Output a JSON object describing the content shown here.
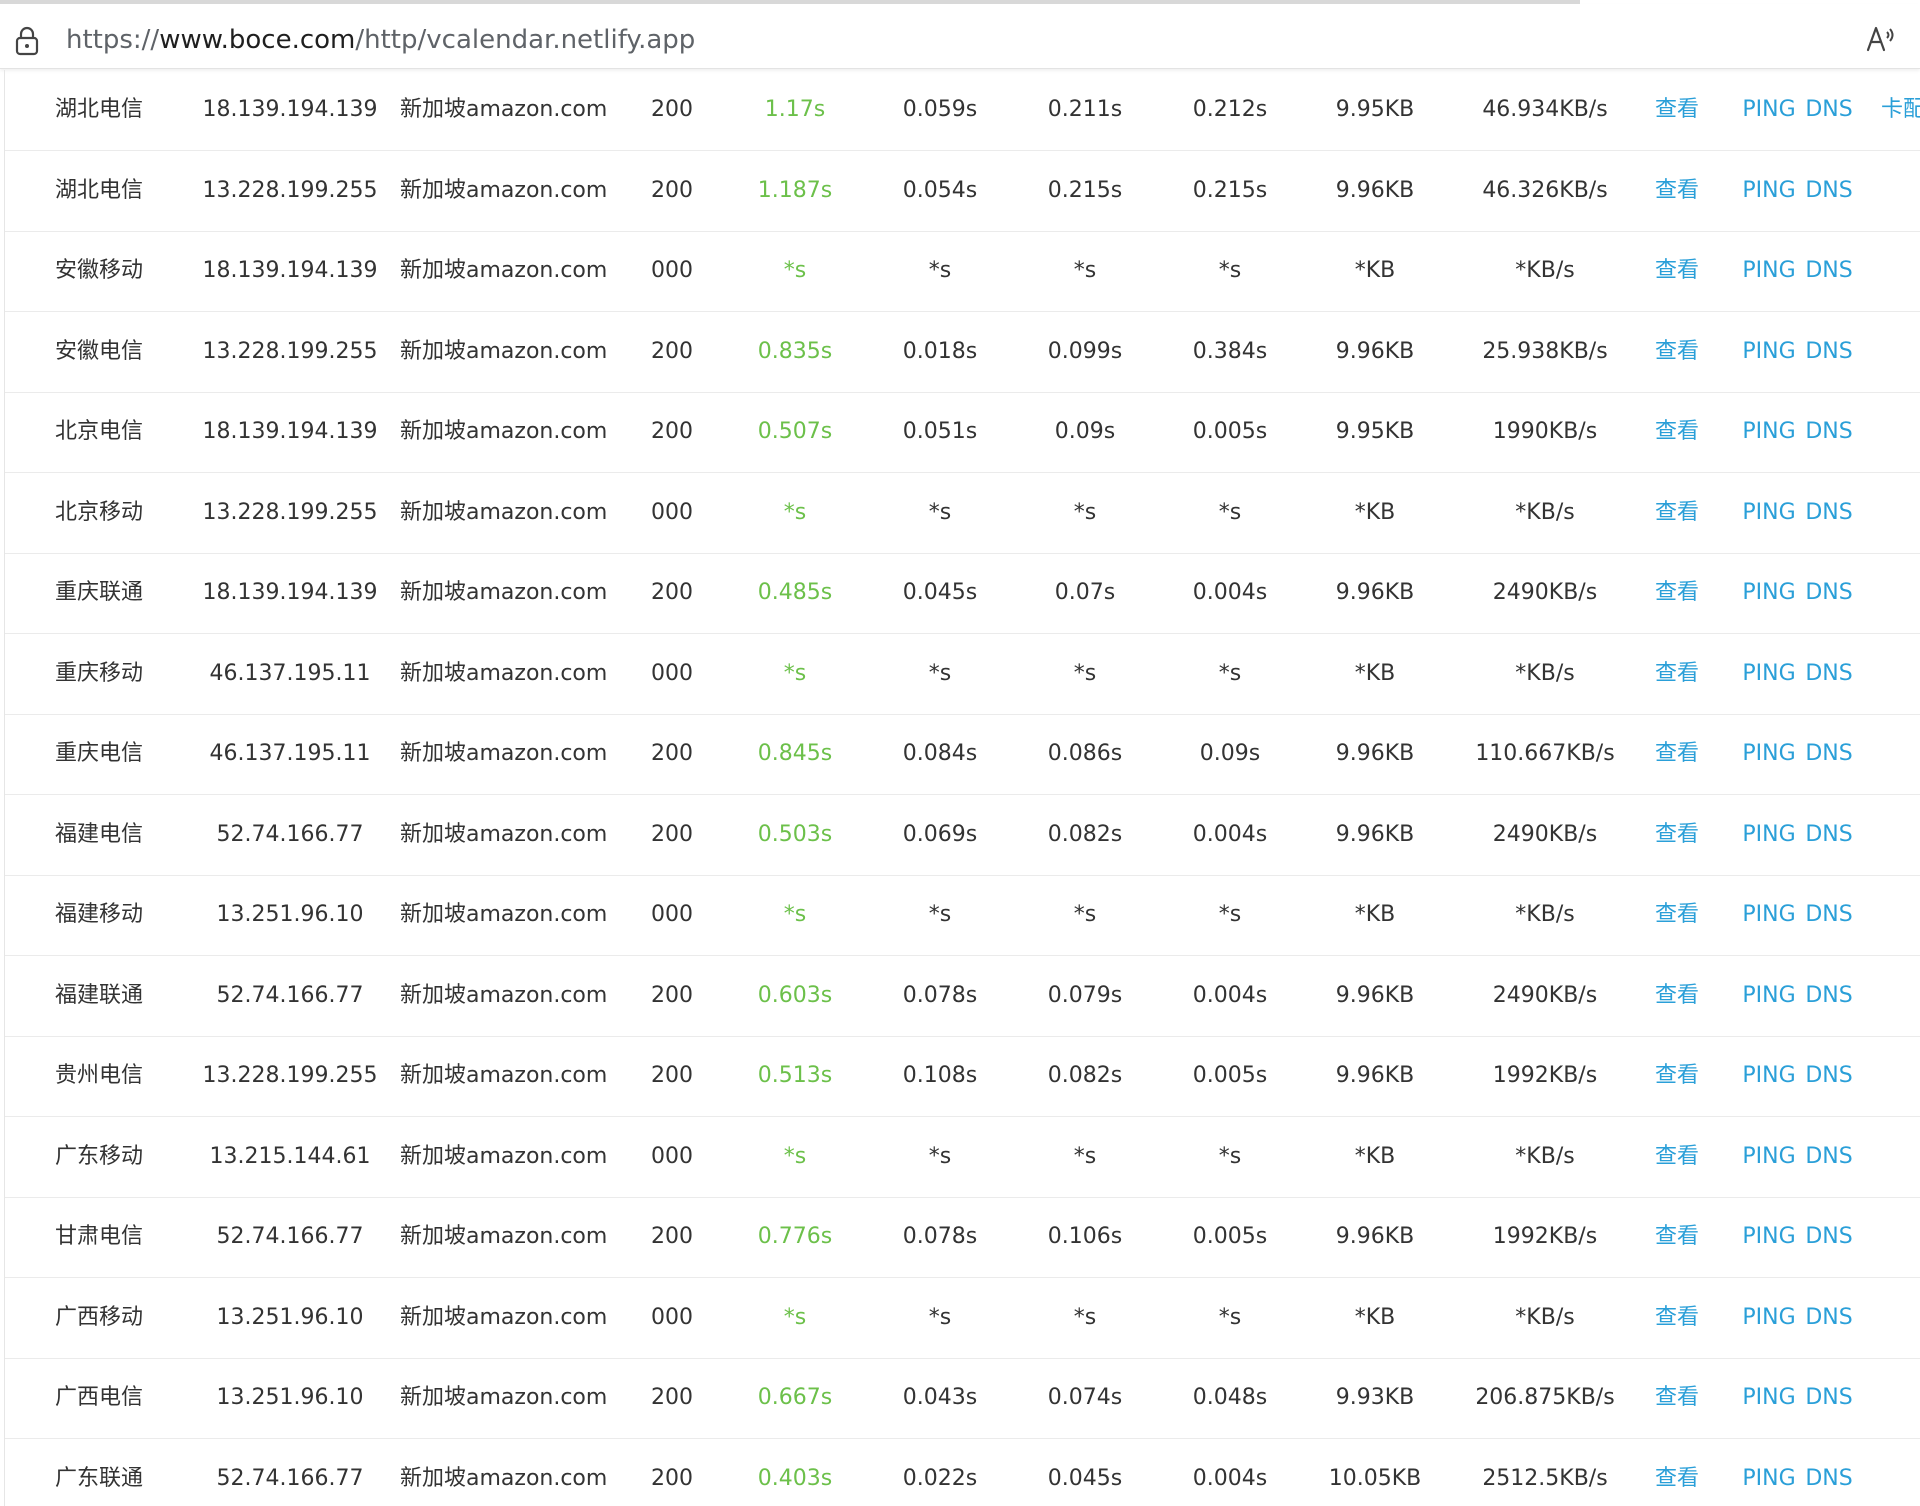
{
  "address_bar": {
    "url_prefix": "https://",
    "url_domain": "www.boce.com",
    "url_path": "/http/vcalendar.netlify.app",
    "lock_icon": "lock-icon",
    "read_aloud_icon": "read-aloud-icon"
  },
  "colors": {
    "link": "#2a9fd8",
    "total_time": "#6cc04a",
    "text": "#333333"
  },
  "row_extra_text": "卡配",
  "rows": [
    {
      "region": "湖北电信",
      "ip": "18.139.194.139",
      "location": "新加坡amazon.com",
      "code": "200",
      "total": "1.17s",
      "dns": "0.059s",
      "connect": "0.211s",
      "download": "0.212s",
      "size": "9.95KB",
      "speed": "46.934KB/s",
      "view": "查看",
      "ping": "PING",
      "dns_link": "DNS"
    },
    {
      "region": "湖北电信",
      "ip": "13.228.199.255",
      "location": "新加坡amazon.com",
      "code": "200",
      "total": "1.187s",
      "dns": "0.054s",
      "connect": "0.215s",
      "download": "0.215s",
      "size": "9.96KB",
      "speed": "46.326KB/s",
      "view": "查看",
      "ping": "PING",
      "dns_link": "DNS"
    },
    {
      "region": "安徽移动",
      "ip": "18.139.194.139",
      "location": "新加坡amazon.com",
      "code": "000",
      "total": "*s",
      "dns": "*s",
      "connect": "*s",
      "download": "*s",
      "size": "*KB",
      "speed": "*KB/s",
      "view": "查看",
      "ping": "PING",
      "dns_link": "DNS"
    },
    {
      "region": "安徽电信",
      "ip": "13.228.199.255",
      "location": "新加坡amazon.com",
      "code": "200",
      "total": "0.835s",
      "dns": "0.018s",
      "connect": "0.099s",
      "download": "0.384s",
      "size": "9.96KB",
      "speed": "25.938KB/s",
      "view": "查看",
      "ping": "PING",
      "dns_link": "DNS"
    },
    {
      "region": "北京电信",
      "ip": "18.139.194.139",
      "location": "新加坡amazon.com",
      "code": "200",
      "total": "0.507s",
      "dns": "0.051s",
      "connect": "0.09s",
      "download": "0.005s",
      "size": "9.95KB",
      "speed": "1990KB/s",
      "view": "查看",
      "ping": "PING",
      "dns_link": "DNS"
    },
    {
      "region": "北京移动",
      "ip": "13.228.199.255",
      "location": "新加坡amazon.com",
      "code": "000",
      "total": "*s",
      "dns": "*s",
      "connect": "*s",
      "download": "*s",
      "size": "*KB",
      "speed": "*KB/s",
      "view": "查看",
      "ping": "PING",
      "dns_link": "DNS"
    },
    {
      "region": "重庆联通",
      "ip": "18.139.194.139",
      "location": "新加坡amazon.com",
      "code": "200",
      "total": "0.485s",
      "dns": "0.045s",
      "connect": "0.07s",
      "download": "0.004s",
      "size": "9.96KB",
      "speed": "2490KB/s",
      "view": "查看",
      "ping": "PING",
      "dns_link": "DNS"
    },
    {
      "region": "重庆移动",
      "ip": "46.137.195.11",
      "location": "新加坡amazon.com",
      "code": "000",
      "total": "*s",
      "dns": "*s",
      "connect": "*s",
      "download": "*s",
      "size": "*KB",
      "speed": "*KB/s",
      "view": "查看",
      "ping": "PING",
      "dns_link": "DNS"
    },
    {
      "region": "重庆电信",
      "ip": "46.137.195.11",
      "location": "新加坡amazon.com",
      "code": "200",
      "total": "0.845s",
      "dns": "0.084s",
      "connect": "0.086s",
      "download": "0.09s",
      "size": "9.96KB",
      "speed": "110.667KB/s",
      "view": "查看",
      "ping": "PING",
      "dns_link": "DNS"
    },
    {
      "region": "福建电信",
      "ip": "52.74.166.77",
      "location": "新加坡amazon.com",
      "code": "200",
      "total": "0.503s",
      "dns": "0.069s",
      "connect": "0.082s",
      "download": "0.004s",
      "size": "9.96KB",
      "speed": "2490KB/s",
      "view": "查看",
      "ping": "PING",
      "dns_link": "DNS"
    },
    {
      "region": "福建移动",
      "ip": "13.251.96.10",
      "location": "新加坡amazon.com",
      "code": "000",
      "total": "*s",
      "dns": "*s",
      "connect": "*s",
      "download": "*s",
      "size": "*KB",
      "speed": "*KB/s",
      "view": "查看",
      "ping": "PING",
      "dns_link": "DNS"
    },
    {
      "region": "福建联通",
      "ip": "52.74.166.77",
      "location": "新加坡amazon.com",
      "code": "200",
      "total": "0.603s",
      "dns": "0.078s",
      "connect": "0.079s",
      "download": "0.004s",
      "size": "9.96KB",
      "speed": "2490KB/s",
      "view": "查看",
      "ping": "PING",
      "dns_link": "DNS"
    },
    {
      "region": "贵州电信",
      "ip": "13.228.199.255",
      "location": "新加坡amazon.com",
      "code": "200",
      "total": "0.513s",
      "dns": "0.108s",
      "connect": "0.082s",
      "download": "0.005s",
      "size": "9.96KB",
      "speed": "1992KB/s",
      "view": "查看",
      "ping": "PING",
      "dns_link": "DNS"
    },
    {
      "region": "广东移动",
      "ip": "13.215.144.61",
      "location": "新加坡amazon.com",
      "code": "000",
      "total": "*s",
      "dns": "*s",
      "connect": "*s",
      "download": "*s",
      "size": "*KB",
      "speed": "*KB/s",
      "view": "查看",
      "ping": "PING",
      "dns_link": "DNS"
    },
    {
      "region": "甘肃电信",
      "ip": "52.74.166.77",
      "location": "新加坡amazon.com",
      "code": "200",
      "total": "0.776s",
      "dns": "0.078s",
      "connect": "0.106s",
      "download": "0.005s",
      "size": "9.96KB",
      "speed": "1992KB/s",
      "view": "查看",
      "ping": "PING",
      "dns_link": "DNS"
    },
    {
      "region": "广西移动",
      "ip": "13.251.96.10",
      "location": "新加坡amazon.com",
      "code": "000",
      "total": "*s",
      "dns": "*s",
      "connect": "*s",
      "download": "*s",
      "size": "*KB",
      "speed": "*KB/s",
      "view": "查看",
      "ping": "PING",
      "dns_link": "DNS"
    },
    {
      "region": "广西电信",
      "ip": "13.251.96.10",
      "location": "新加坡amazon.com",
      "code": "200",
      "total": "0.667s",
      "dns": "0.043s",
      "connect": "0.074s",
      "download": "0.048s",
      "size": "9.93KB",
      "speed": "206.875KB/s",
      "view": "查看",
      "ping": "PING",
      "dns_link": "DNS"
    },
    {
      "region": "广东联通",
      "ip": "52.74.166.77",
      "location": "新加坡amazon.com",
      "code": "200",
      "total": "0.403s",
      "dns": "0.022s",
      "connect": "0.045s",
      "download": "0.004s",
      "size": "10.05KB",
      "speed": "2512.5KB/s",
      "view": "查看",
      "ping": "PING",
      "dns_link": "DNS"
    }
  ]
}
